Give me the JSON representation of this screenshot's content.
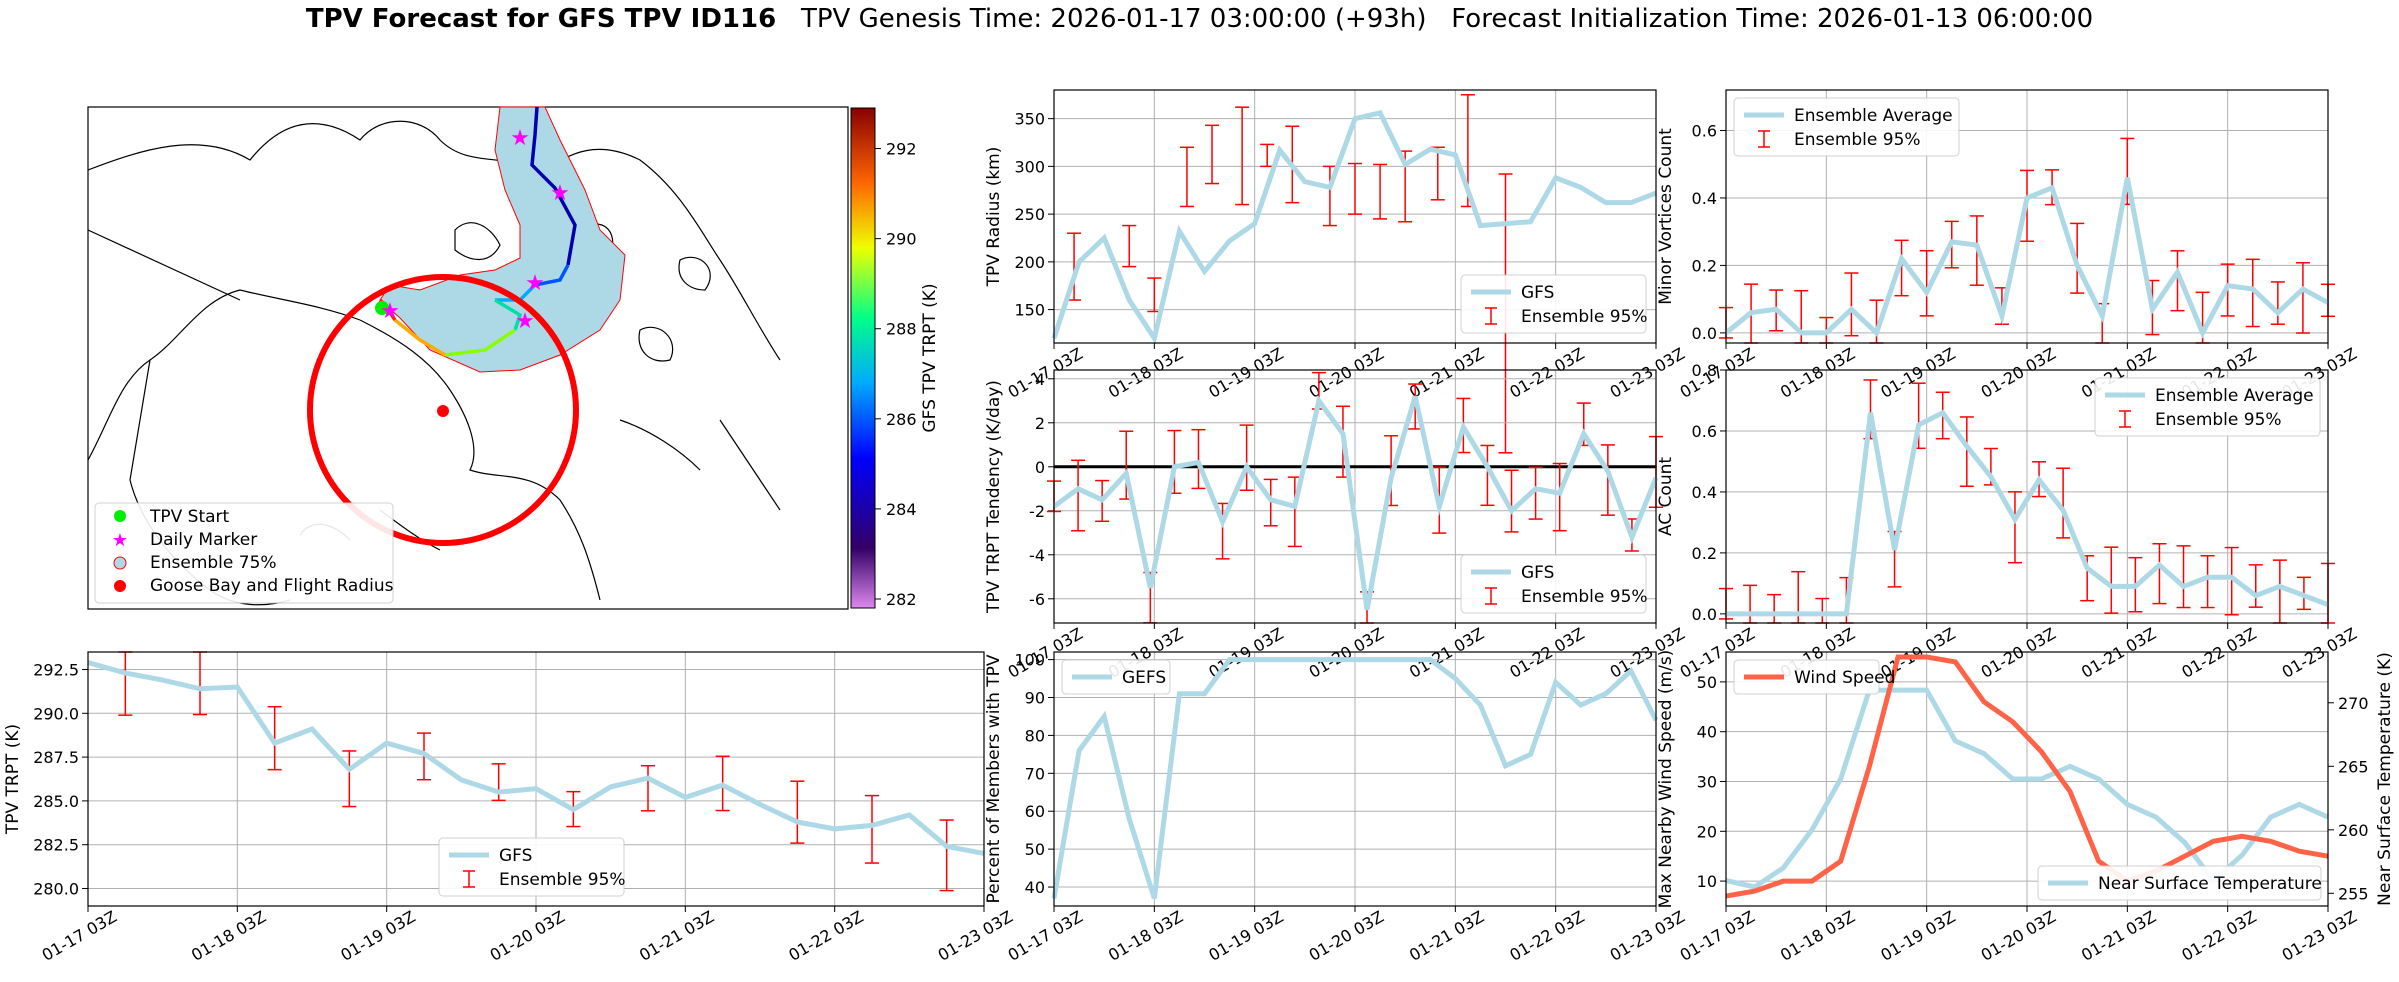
{
  "header": {
    "title_bold": "TPV Forecast for GFS TPV ID116",
    "genesis": "TPV Genesis Time: 2026-01-17 03:00:00 (+93h)",
    "init": "Forecast Initialization Time: 2026-01-13 06:00:00"
  },
  "colors": {
    "series": "#add8e6",
    "error": "#ff0000",
    "wind": "#ff6347",
    "temp_axis": "#4169e1"
  },
  "map": {
    "colorbar_label": "GFS TPV TRPT (K)",
    "colorbar_ticks": [
      "282",
      "284",
      "286",
      "288",
      "290",
      "292"
    ],
    "legend": [
      "TPV Start",
      "Daily Marker",
      "Ensemble 75%",
      "Goose Bay and Flight Radius"
    ]
  },
  "chart_data": [
    {
      "id": "radius",
      "type": "line",
      "ylabel": "TPV Radius (km)",
      "ylim": [
        115,
        380
      ],
      "yticks": [
        150,
        200,
        250,
        300,
        350
      ],
      "legend": [
        "GFS",
        "Ensemble 95%"
      ],
      "values": [
        120,
        200,
        225,
        160,
        120,
        232,
        190,
        222,
        240,
        317,
        284,
        278,
        350,
        356,
        302,
        318,
        312,
        238,
        240,
        242,
        288,
        278,
        262,
        262,
        272
      ],
      "err_low": [
        160,
        195,
        null,
        148,
        null,
        258,
        282,
        260,
        300,
        null,
        262,
        238,
        250,
        245,
        null,
        242,
        265,
        258,
        292,
        null,
        null,
        null,
        null,
        null,
        null
      ],
      "err_high": [
        230,
        238,
        null,
        183,
        null,
        320,
        343,
        362,
        323,
        null,
        342,
        300,
        303,
        302,
        null,
        316,
        320,
        375,
        null,
        null,
        null,
        null,
        null,
        null,
        null
      ],
      "err_pos": [
        0.8,
        3,
        null,
        4,
        null,
        5.3,
        6.3,
        7.5,
        8.5,
        null,
        9.5,
        11,
        12,
        13,
        null,
        14,
        15.3,
        16.5,
        18,
        null,
        null,
        null,
        null,
        null,
        null
      ]
    },
    {
      "id": "minor",
      "type": "line",
      "ylabel": "Minor Vortices Count",
      "ylim": [
        -0.03,
        0.72
      ],
      "yticks": [
        0.0,
        0.2,
        0.4,
        0.6
      ],
      "legend": [
        "Ensemble Average",
        "Ensemble 95%"
      ],
      "values": [
        0.0,
        0.06,
        0.07,
        0.0,
        0.0,
        0.07,
        0.0,
        0.22,
        0.12,
        0.27,
        0.26,
        0.05,
        0.4,
        0.43,
        0.2,
        0.05,
        0.46,
        0.07,
        0.18,
        0.0,
        0.14,
        0.13,
        0.06,
        0.13,
        0.09
      ]
    },
    {
      "id": "tendency",
      "type": "line",
      "ylabel": "TPV TRPT Tendency (K/day)",
      "ylim": [
        -7.1,
        4.4
      ],
      "yticks": [
        -6,
        -4,
        -2,
        0,
        2,
        4
      ],
      "legend": [
        "GFS",
        "Ensemble 95%"
      ],
      "values": [
        -1.8,
        -1.0,
        -1.5,
        -0.3,
        -5.5,
        0.0,
        0.2,
        -2.5,
        0.0,
        -1.5,
        -1.8,
        3.0,
        1.5,
        -6.5,
        -0.5,
        3.2,
        -1.8,
        1.8,
        0.0,
        -2.0,
        -1.0,
        -1.2,
        1.5,
        -0.2,
        -3.2,
        -0.5
      ]
    },
    {
      "id": "ac",
      "type": "line",
      "ylabel": "AC Count",
      "ylim": [
        -0.03,
        0.8
      ],
      "yticks": [
        0.0,
        0.2,
        0.4,
        0.6,
        0.8
      ],
      "legend": [
        "Ensemble Average",
        "Ensemble 95%"
      ],
      "values": [
        0.0,
        0.0,
        0.0,
        0.0,
        0.0,
        0.0,
        0.66,
        0.21,
        0.62,
        0.66,
        0.55,
        0.45,
        0.31,
        0.44,
        0.34,
        0.15,
        0.09,
        0.09,
        0.16,
        0.09,
        0.12,
        0.12,
        0.06,
        0.09,
        0.06,
        0.03
      ]
    },
    {
      "id": "trpt",
      "type": "line",
      "ylabel": "TPV TRPT (K)",
      "ylim": [
        279,
        293.5
      ],
      "yticks": [
        280.0,
        282.5,
        285.0,
        287.5,
        290.0,
        292.5
      ],
      "legend": [
        "GFS",
        "Ensemble 95%"
      ],
      "values": [
        292.9,
        292.3,
        291.9,
        291.4,
        291.5,
        288.3,
        289.1,
        286.8,
        288.3,
        287.7,
        286.2,
        285.5,
        285.7,
        284.5,
        285.8,
        286.3,
        285.2,
        285.9,
        284.8,
        283.8,
        283.4,
        283.6,
        284.2,
        282.4,
        282.0
      ]
    },
    {
      "id": "percent",
      "type": "line",
      "ylabel": "Percent of Members with TPV",
      "ylim": [
        35,
        102
      ],
      "yticks": [
        40,
        50,
        60,
        70,
        80,
        90,
        100
      ],
      "legend": [
        "GEFS"
      ],
      "values": [
        37,
        76,
        85,
        58,
        37,
        91,
        91,
        100,
        100,
        100,
        100,
        100,
        100,
        100,
        100,
        100,
        95,
        88,
        72,
        75,
        94,
        88,
        91,
        97,
        84
      ]
    },
    {
      "id": "wind",
      "type": "line",
      "ylabel": "Max Nearby Wind Speed (m/s)",
      "y2label": "Near Surface Temperature (K)",
      "ylim": [
        5,
        56
      ],
      "yticks": [
        10,
        20,
        30,
        40,
        50
      ],
      "y2lim": [
        254,
        274
      ],
      "y2ticks": [
        255,
        260,
        265,
        270
      ],
      "legend": [
        "Wind Speed",
        "Near Surface Temperature"
      ],
      "wind_values": [
        7,
        8,
        10,
        10,
        14,
        33,
        55,
        55,
        54,
        46,
        42,
        36,
        28,
        14,
        10,
        12,
        15,
        18,
        19,
        18,
        16,
        15
      ],
      "temp_values": [
        256,
        255.5,
        257,
        260,
        264,
        271,
        271,
        271,
        267,
        266,
        264,
        264,
        265,
        264,
        262,
        261,
        259,
        256,
        258,
        261,
        262,
        261
      ]
    }
  ],
  "xticks": [
    "01-17 03Z",
    "01-18 03Z",
    "01-19 03Z",
    "01-20 03Z",
    "01-21 03Z",
    "01-22 03Z",
    "01-23 03Z"
  ]
}
